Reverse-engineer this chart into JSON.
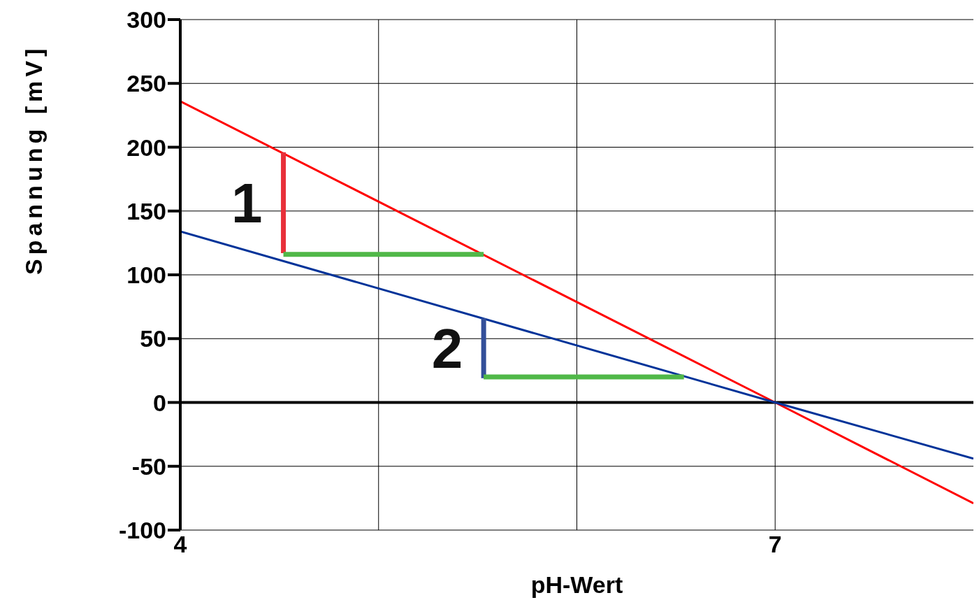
{
  "chart_data": {
    "type": "line",
    "xlabel": "pH-Wert",
    "ylabel": "Spannung [mV]",
    "xlim": [
      4,
      8
    ],
    "xticks": [
      {
        "value": 4,
        "label": "4"
      },
      {
        "value": 5,
        "label": null
      },
      {
        "value": 6,
        "label": null
      },
      {
        "value": 7,
        "label": "7"
      }
    ],
    "ylim": [
      -100,
      300
    ],
    "yticks": [
      -100,
      -50,
      0,
      50,
      100,
      150,
      200,
      250,
      300
    ],
    "grid": true,
    "marker": "none",
    "line_style": "solid",
    "series": [
      {
        "color": "#ff0000",
        "x": [
          4,
          7,
          8
        ],
        "values": [
          236,
          0,
          -79
        ]
      },
      {
        "color": "#003399",
        "x": [
          4,
          7,
          8
        ],
        "values": [
          134,
          0,
          -44
        ]
      },
      {
        "color": "#e8303a",
        "x": [
          4.52,
          4.52
        ],
        "values": [
          196,
          117
        ]
      },
      {
        "color": "#50b848",
        "x": [
          4.52,
          5.53
        ],
        "values": [
          116,
          116
        ]
      },
      {
        "color": "#334f99",
        "x": [
          5.53,
          5.53
        ],
        "values": [
          66,
          19
        ]
      },
      {
        "color": "#50b848",
        "x": [
          5.53,
          6.54
        ],
        "values": [
          20,
          20
        ]
      }
    ],
    "annotations": [
      "1",
      "2"
    ]
  }
}
